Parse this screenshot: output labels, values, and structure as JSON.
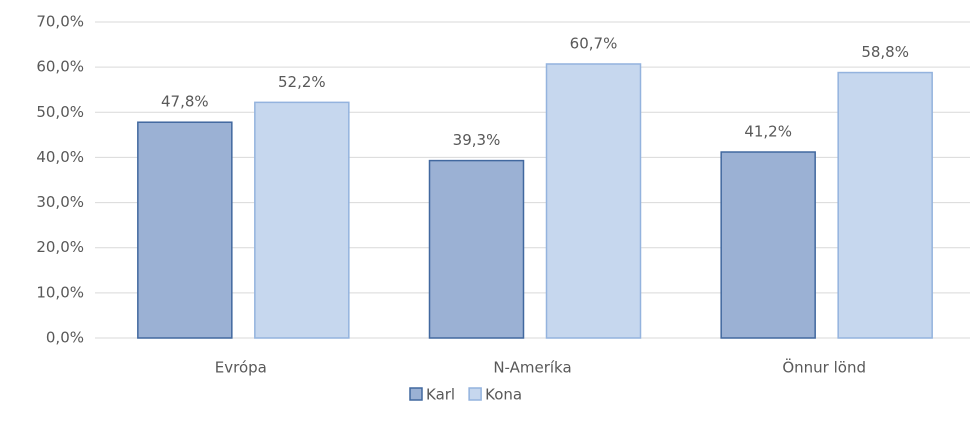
{
  "chart_data": {
    "type": "bar",
    "categories": [
      "Evrópa",
      "N-Ameríka",
      "Önnur lönd"
    ],
    "series": [
      {
        "name": "Karl",
        "color": "#9bb1d4",
        "values": [
          47.8,
          39.3,
          41.2
        ],
        "value_labels": [
          "47,8%",
          "39,3%",
          "41,2%"
        ]
      },
      {
        "name": "Kona",
        "color": "#c6d7ee",
        "values": [
          52.2,
          60.7,
          58.8
        ],
        "value_labels": [
          "52,2%",
          "60,7%",
          "58,8%"
        ]
      }
    ],
    "ylim": [
      0,
      70
    ],
    "yticks": [
      {
        "value": 0,
        "label": "0,0%"
      },
      {
        "value": 10,
        "label": "10,0%"
      },
      {
        "value": 20,
        "label": "20,0%"
      },
      {
        "value": 30,
        "label": "30,0%"
      },
      {
        "value": 40,
        "label": "40,0%"
      },
      {
        "value": 50,
        "label": "50,0%"
      },
      {
        "value": 60,
        "label": "60,0%"
      },
      {
        "value": 70,
        "label": "70,0%"
      }
    ],
    "grid": true,
    "legend": "bottom"
  }
}
